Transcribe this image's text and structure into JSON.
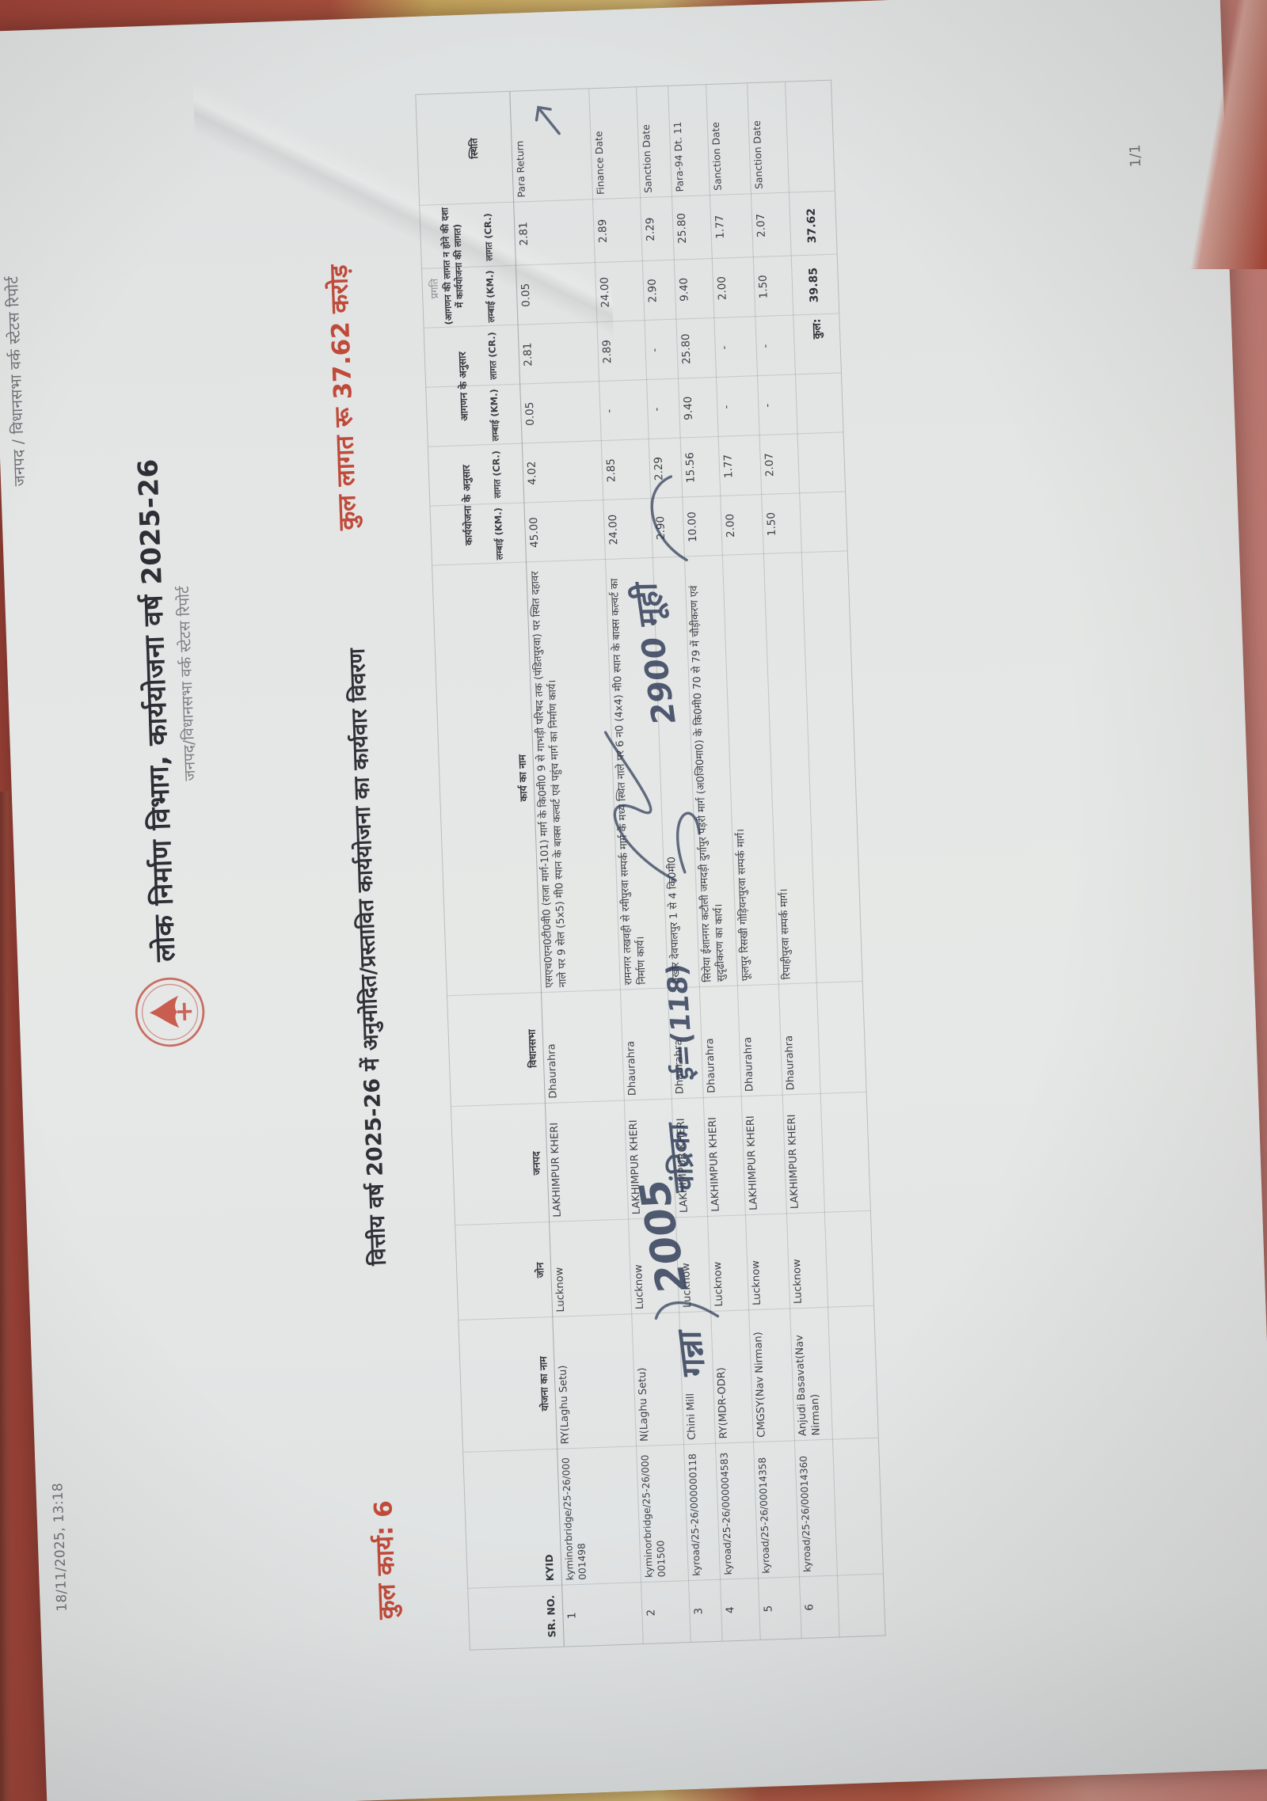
{
  "colors": {
    "accent_red": "#bf4a3a",
    "ink": "#3a3e44",
    "pen_ink": "#2e3a56",
    "paper": "#e4e6e5",
    "blanket_red": "#a84f3e",
    "blanket_yellow": "#d8c078"
  },
  "page": {
    "print_header": {
      "date": "18/11/2025, 13:18",
      "title": "जनपद / विधानसभा वर्क स्टेटस रिपोर्ट"
    },
    "masthead": {
      "logo": "up-pwd-emblem",
      "department": "लोक निर्माण विभाग, कार्ययोजना वर्ष 2025-26",
      "subtitle": "जनपद/विधानसभा वर्क स्टेटस रिपोर्ट"
    },
    "summary": {
      "total_works": "कुल कार्य: 6",
      "report_title": "वित्तीय वर्ष 2025-26 में अनुमोदित/प्रस्तावित कार्ययोजना का कार्यवार विवरण",
      "total_cost": "कुल लागत रू 37.62 करोड़"
    },
    "table": {
      "columns": [
        "SR. NO.",
        "KYID",
        "योजना का नाम",
        "जोन",
        "जनपद",
        "विधानसभा",
        "कार्य का नाम"
      ],
      "groups": [
        {
          "label": "कार्ययोजना के अनुसार",
          "sub": [
            "लम्बाई (KM.)",
            "लागत (CR.)"
          ]
        },
        {
          "label": "आगणन के अनुसार",
          "sub": [
            "लम्बाई (KM.)",
            "लागत (CR.)"
          ]
        },
        {
          "label": "(आगणन की लागत न होने की दशा में कार्ययोजना की लागत)",
          "sub": [
            "लम्बाई (KM.)",
            "लागत (CR.)"
          ],
          "overline": "प्रगति"
        }
      ],
      "status_column": "स्थिति",
      "rows": [
        {
          "sr": "1",
          "kyid": "kyminorbridge/25-26/000001498",
          "yojana": "RY(Laghu Setu)",
          "zone": "Lucknow",
          "district": "LAKHIMPUR KHERI",
          "vidhansabha": "Dhaurahra",
          "work": "एसएच0एन0टी0वी0 (राजा मार्ग-101) मार्ग के कि0मी0 9 से गाभड़ी परिषद तक (पंडितपुरवा) पर स्थित दहावर नाले पर 9 सेल (5x5) मी0 स्पान के बाक्स कल्वर्ट एवं पहुंच मार्ग का निर्माण कार्य।",
          "plan_km": "45.00",
          "plan_cr": "4.02",
          "est_km": "0.05",
          "est_cr": "2.81",
          "prog_km": "0.05",
          "prog_cr": "2.81",
          "status": "Para Return"
        },
        {
          "sr": "2",
          "kyid": "kyminorbridge/25-26/000001500",
          "yojana": "N(Laghu Setu)",
          "zone": "Lucknow",
          "district": "LAKHIMPUR KHERI",
          "vidhansabha": "Dhaurahra",
          "work": "रामनगर तखवही से रमीपुरवा सम्पर्क मार्ग के मध्य स्थित नाले पर 6 न0 (4x4) मी0 स्पान के बाक्स कल्वर्ट का निर्माण कार्य।",
          "plan_km": "24.00",
          "plan_cr": "2.85",
          "est_km": "-",
          "est_cr": "2.89",
          "prog_km": "24.00",
          "prog_cr": "2.89",
          "status": "Finance Date"
        },
        {
          "sr": "3",
          "kyid": "kyroad/25-26/000000118",
          "yojana": "Chini Mill",
          "zone": "Lucknow",
          "district": "LAKHIMPUR KHERI",
          "vidhansabha": "Dhaurahra",
          "work": "तखोर देवपालपुर 1 से 4 कि0मी0",
          "plan_km": "2.90",
          "plan_cr": "2.29",
          "est_km": "-",
          "est_cr": "-",
          "prog_km": "2.90",
          "prog_cr": "2.29",
          "status": "Sanction Date"
        },
        {
          "sr": "4",
          "kyid": "kyroad/25-26/000004583",
          "yojana": "RY(MDR-ODR)",
          "zone": "Lucknow",
          "district": "LAKHIMPUR KHERI",
          "vidhansabha": "Dhaurahra",
          "work": "सिरोया ईशानगर कटौली जमदड़ी दुर्गापुर पड़री मार्ग (अ0जि0मा0) के कि0मी0 70 से 79 में चौड़ीकरण एवं सुदृढीकरण का कार्य।",
          "plan_km": "10.00",
          "plan_cr": "15.56",
          "est_km": "9.40",
          "est_cr": "25.80",
          "prog_km": "9.40",
          "prog_cr": "25.80",
          "status": "Para-94 Dt. 11"
        },
        {
          "sr": "5",
          "kyid": "kyroad/25-26/00014358",
          "yojana": "CMGSY(Nav Nirman)",
          "zone": "Lucknow",
          "district": "LAKHIMPUR KHERI",
          "vidhansabha": "Dhaurahra",
          "work": "फूलपुर रिसखी गोड़ियनपुरवा सम्पर्क मार्ग।",
          "plan_km": "2.00",
          "plan_cr": "1.77",
          "est_km": "-",
          "est_cr": "-",
          "prog_km": "2.00",
          "prog_cr": "1.77",
          "status": "Sanction Date"
        },
        {
          "sr": "6",
          "kyid": "kyroad/25-26/00014360",
          "yojana": "Anjudi Basavat(Nav Nirman)",
          "zone": "Lucknow",
          "district": "LAKHIMPUR KHERI",
          "vidhansabha": "Dhaurahra",
          "work": "रिपाहीपुरवा सम्पर्क मार्ग।",
          "plan_km": "1.50",
          "plan_cr": "2.07",
          "est_km": "-",
          "est_cr": "-",
          "prog_km": "1.50",
          "prog_cr": "2.07",
          "status": "Sanction Date"
        }
      ],
      "totals": {
        "label": "कुल:",
        "length_km": "39.85",
        "cost_cr": "37.62"
      }
    },
    "footer": {
      "page_number": "1/1"
    },
    "annotations": [
      {
        "text": "गन्ना",
        "area": "yojana-row3"
      },
      {
        "text": "2005",
        "area": "zone-row3"
      },
      {
        "text": "चंद्रिका",
        "area": "district-row3"
      },
      {
        "text": "ई=(118)",
        "area": "vidhansabha-row3"
      },
      {
        "text": "2900 मूही",
        "area": "work-row3"
      }
    ]
  }
}
